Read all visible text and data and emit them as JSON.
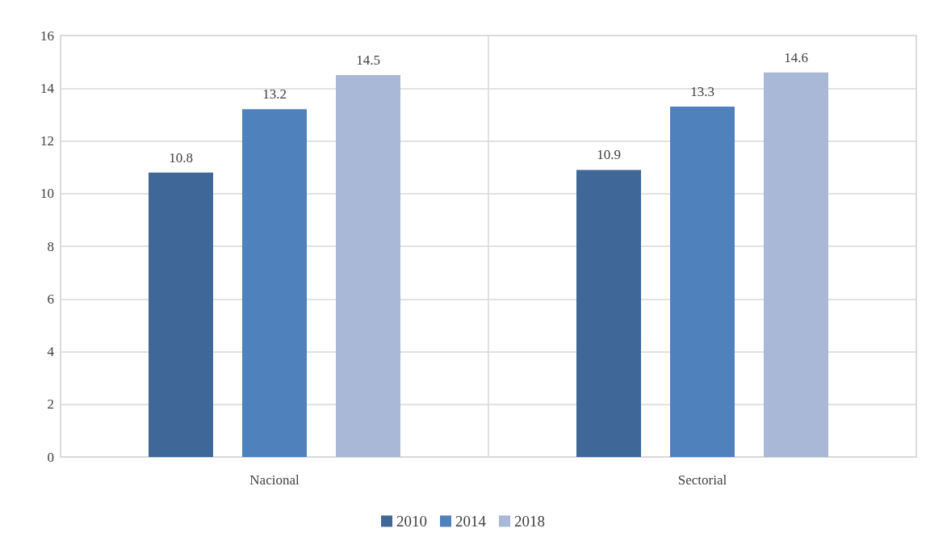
{
  "chart_data": {
    "type": "bar",
    "categories": [
      "Nacional",
      "Sectorial"
    ],
    "series": [
      {
        "name": "2010",
        "color": "#3f6899",
        "values": [
          10.8,
          10.9
        ]
      },
      {
        "name": "2014",
        "color": "#4f81bd",
        "values": [
          13.2,
          13.3
        ]
      },
      {
        "name": "2018",
        "color": "#a9b8d6",
        "values": [
          14.5,
          14.6
        ]
      }
    ],
    "ylim": [
      0,
      16
    ],
    "yticks": [
      0,
      2,
      4,
      6,
      8,
      10,
      12,
      14,
      16
    ],
    "grid": true,
    "legend": "bottom",
    "data_labels": true
  }
}
